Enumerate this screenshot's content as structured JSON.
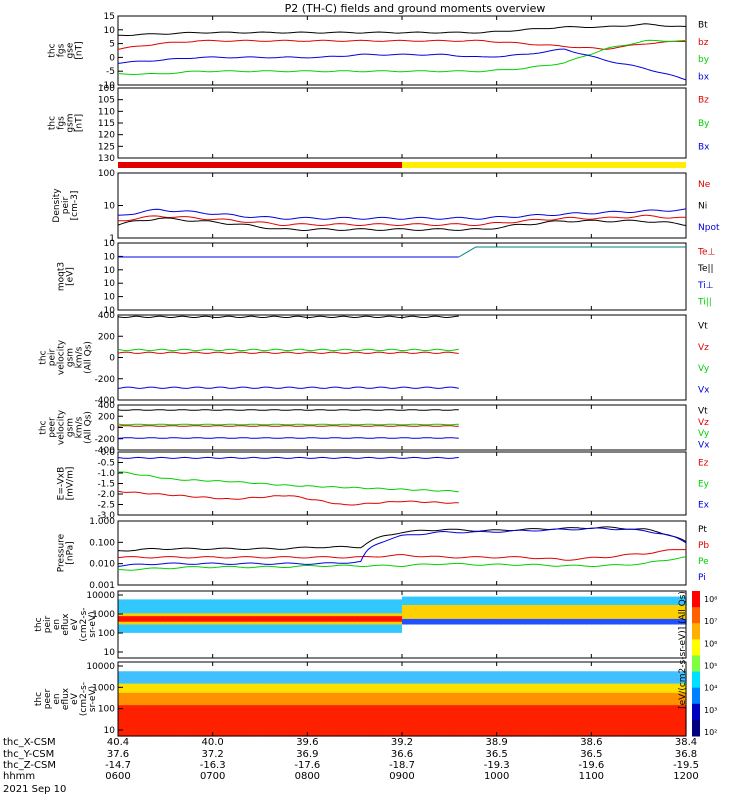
{
  "title": "P2 (TH-C) fields and ground moments overview",
  "footer": {
    "row_labels": [
      "thc_X-CSM",
      "thc_Y-CSM",
      "thc_Z-CSM",
      "hhmm",
      "2021 Sep 10"
    ],
    "columns": [
      {
        "x": "40.4",
        "y": "37.6",
        "z": "-14.7",
        "t": "0600"
      },
      {
        "x": "40.0",
        "y": "37.2",
        "z": "-16.3",
        "t": "0700"
      },
      {
        "x": "39.6",
        "y": "36.9",
        "z": "-17.6",
        "t": "0800"
      },
      {
        "x": "39.2",
        "y": "36.6",
        "z": "-18.7",
        "t": "0900"
      },
      {
        "x": "38.9",
        "y": "36.5",
        "z": "-19.3",
        "t": "1000"
      },
      {
        "x": "38.6",
        "y": "36.5",
        "z": "-19.6",
        "t": "1100"
      },
      {
        "x": "38.4",
        "y": "36.8",
        "z": "-19.5",
        "t": "1200"
      }
    ]
  },
  "colorbar_label": "[eV/(cm2-s-sr-eV)] (All Qs)",
  "colors": {
    "black": "#000000",
    "red": "#e00000",
    "green": "#00d000",
    "blue": "#0000e0",
    "yellow": "#ffee00",
    "teal": "#008080"
  },
  "chart_data": [
    {
      "type": "line",
      "id": "fgs_gse",
      "ylabel": [
        "thc",
        "fgs",
        "gse",
        "[nT]"
      ],
      "ylim": [
        -10,
        15
      ],
      "yticks": [
        "15",
        "10",
        "5",
        "0",
        "-5",
        "-10"
      ],
      "series": [
        {
          "name": "Bt",
          "color": "black",
          "values": [
            8,
            8.5,
            9,
            9,
            9,
            9,
            9,
            9,
            9,
            9,
            10,
            11,
            11,
            12,
            11
          ]
        },
        {
          "name": "bz",
          "color": "red",
          "values": [
            3,
            5,
            6,
            6,
            6,
            6,
            6,
            6,
            6,
            6,
            5,
            4,
            3,
            5,
            6
          ]
        },
        {
          "name": "by",
          "color": "green",
          "values": [
            -6,
            -6,
            -5,
            -5,
            -5,
            -5,
            -5,
            -5,
            -5,
            -5,
            -4,
            -2,
            3,
            6,
            6
          ]
        },
        {
          "name": "bx",
          "color": "blue",
          "values": [
            -2,
            -1,
            0,
            0,
            0,
            0,
            1,
            1,
            1,
            0,
            1,
            3,
            -1,
            -4,
            -8
          ]
        }
      ]
    },
    {
      "type": "line",
      "id": "fgs_gsm",
      "ylabel": [
        "thc",
        "fgs",
        "gsm",
        "[nT]"
      ],
      "ylim": [
        130,
        100
      ],
      "yticks": [
        "100",
        "105",
        "110",
        "115",
        "120",
        "125",
        "130"
      ],
      "series": [
        {
          "name": "Bz",
          "color": "red"
        },
        {
          "name": "By",
          "color": "green"
        },
        {
          "name": "Bx",
          "color": "blue"
        }
      ]
    },
    {
      "type": "bar",
      "id": "mode_bar",
      "segments": [
        {
          "from": 0,
          "to": 0.5,
          "color": "red"
        },
        {
          "from": 0.5,
          "to": 1,
          "color": "yellow"
        }
      ]
    },
    {
      "type": "line",
      "id": "density",
      "ylabel": [
        "Density",
        "peir",
        "[cm-3]"
      ],
      "scale": "log",
      "ylim": [
        1,
        200
      ],
      "yticks": [
        "100",
        "10",
        "1"
      ],
      "series": [
        {
          "name": "Ne",
          "color": "red",
          "values": [
            4,
            6,
            5,
            4,
            3,
            3,
            3,
            3,
            3,
            3,
            4,
            5,
            5,
            6,
            5
          ]
        },
        {
          "name": "Ni",
          "color": "black",
          "values": [
            3,
            5,
            4,
            3,
            2,
            2,
            2,
            2,
            2,
            2,
            3,
            4,
            4,
            4,
            3
          ]
        },
        {
          "name": "Npot",
          "color": "blue",
          "values": [
            6,
            10,
            8,
            6,
            5,
            5,
            5,
            5,
            5,
            5,
            6,
            7,
            8,
            9,
            10
          ]
        }
      ]
    },
    {
      "type": "line",
      "id": "moqt3",
      "ylabel": [
        "moqt3",
        "[eV]"
      ],
      "scale": "log",
      "yticks": [
        "10",
        "10",
        "10",
        "10",
        "10",
        "10"
      ],
      "series": [
        {
          "name": "Te⊥",
          "color": "red"
        },
        {
          "name": "Te||",
          "color": "black"
        },
        {
          "name": "Ti⊥",
          "color": "blue"
        },
        {
          "name": "Ti||",
          "color": "green"
        }
      ]
    },
    {
      "type": "line",
      "id": "velocity_gsm",
      "ylabel": [
        "thc",
        "peir",
        "velocity",
        "gsm",
        "km/s",
        "(All Qs)"
      ],
      "ylim": [
        -500,
        400
      ],
      "yticks": [
        "400",
        "200",
        "0",
        "-200",
        "-400"
      ],
      "series": [
        {
          "name": "Vt",
          "color": "black",
          "values": [
            380,
            380,
            380,
            380,
            380,
            380,
            380
          ]
        },
        {
          "name": "Vz",
          "color": "red",
          "values": [
            0,
            0,
            0,
            0,
            0,
            0,
            0
          ]
        },
        {
          "name": "Vy",
          "color": "green",
          "values": [
            30,
            30,
            30,
            30,
            30,
            30,
            30
          ]
        },
        {
          "name": "Vx",
          "color": "blue",
          "values": [
            -370,
            -370,
            -370,
            -370,
            -370,
            -370,
            -370
          ]
        }
      ]
    },
    {
      "type": "line",
      "id": "velocity_gse",
      "ylabel": [
        "thc",
        "peer",
        "velocity",
        "gsm",
        "km/s",
        "(All Qs)"
      ],
      "ylim": [
        -500,
        400
      ],
      "yticks": [
        "400",
        "200",
        "0",
        "-200",
        "-400"
      ],
      "series": [
        {
          "name": "Vt",
          "color": "black",
          "values": [
            300,
            300,
            300,
            300,
            300,
            300,
            300
          ]
        },
        {
          "name": "Vz",
          "color": "red",
          "values": [
            -20,
            -20,
            -20,
            -20,
            -20,
            -20,
            -20
          ]
        },
        {
          "name": "Vy",
          "color": "green",
          "values": [
            10,
            10,
            10,
            10,
            10,
            10,
            10
          ]
        },
        {
          "name": "Vx",
          "color": "blue",
          "values": [
            -260,
            -260,
            -260,
            -260,
            -260,
            -260,
            -260
          ]
        }
      ]
    },
    {
      "type": "line",
      "id": "efield",
      "ylabel": [
        "E=-VxB",
        "[mV/m]"
      ],
      "ylim": [
        -3,
        0.2
      ],
      "yticks": [
        "0.0",
        "-0.5",
        "-1.0",
        "-1.5",
        "-2.0",
        "-2.5",
        "-3.0"
      ],
      "series": [
        {
          "name": "Ez",
          "color": "red",
          "values": [
            -1.8,
            -2.0,
            -2.2,
            -2.0,
            -2.5,
            -2.3,
            -2.4
          ]
        },
        {
          "name": "Ey",
          "color": "green",
          "values": [
            -0.8,
            -1.2,
            -1.3,
            -1.5,
            -1.6,
            -1.7,
            -1.8
          ]
        },
        {
          "name": "Ex",
          "color": "blue",
          "values": [
            -0.1,
            -0.1,
            -0.1,
            -0.1,
            -0.1,
            -0.1,
            -0.1
          ]
        }
      ]
    },
    {
      "type": "line",
      "id": "pressure",
      "ylabel": [
        "Pressure",
        "[nPa]"
      ],
      "scale": "log",
      "ylim": [
        0.001,
        1
      ],
      "yticks": [
        "1.000",
        "0.100",
        "0.010",
        "0.001"
      ],
      "series": [
        {
          "name": "Pt",
          "color": "black",
          "values": [
            0.04,
            0.05,
            0.05,
            0.05,
            0.05,
            0.06,
            0.06,
            0.3,
            0.4,
            0.35,
            0.4,
            0.45,
            0.5,
            0.4,
            0.1
          ]
        },
        {
          "name": "Pb",
          "color": "red",
          "values": [
            0.02,
            0.02,
            0.02,
            0.02,
            0.02,
            0.02,
            0.02,
            0.025,
            0.02,
            0.02,
            0.02,
            0.015,
            0.02,
            0.03,
            0.05
          ]
        },
        {
          "name": "Pe",
          "color": "green",
          "values": [
            0.005,
            0.006,
            0.007,
            0.007,
            0.007,
            0.008,
            0.008,
            0.008,
            0.01,
            0.009,
            0.009,
            0.008,
            0.008,
            0.01,
            0.02
          ]
        },
        {
          "name": "Pi",
          "color": "blue",
          "values": [
            0.008,
            0.01,
            0.01,
            0.01,
            0.01,
            0.01,
            0.012,
            0.2,
            0.3,
            0.3,
            0.35,
            0.4,
            0.45,
            0.35,
            0.1
          ]
        }
      ]
    },
    {
      "type": "heatmap",
      "id": "peir_spec",
      "ylabel": [
        "thc",
        "peir",
        "en",
        "eflux",
        "eV",
        "(cm2-s-",
        "sr-eV)"
      ],
      "scale": "log",
      "yticks": [
        "10000",
        "1000",
        "100",
        "10"
      ]
    },
    {
      "type": "heatmap",
      "id": "peer_spec",
      "ylabel": [
        "thc",
        "peer",
        "en",
        "eflux",
        "eV",
        "(cm2-s-",
        "sr-eV)"
      ],
      "scale": "log",
      "yticks": [
        "10000",
        "1000",
        "100",
        "10"
      ],
      "colorbar_ticks": [
        "10⁸",
        "10⁷",
        "10⁶",
        "10⁵",
        "10⁴",
        "10³",
        "10²"
      ]
    }
  ],
  "legends": {
    "fgs_gse": [
      "Bt",
      "bz",
      "by",
      "bx"
    ],
    "fgs_gsm": [
      "Bz",
      "By",
      "Bx"
    ],
    "density": [
      "Ne",
      "Ni",
      "Npot"
    ],
    "moqt3": [
      "Te⊥",
      "Te||",
      "Ti⊥",
      "Ti||"
    ],
    "velocity_gsm": [
      "Vt",
      "Vz",
      "Vy",
      "Vx"
    ],
    "velocity_gse": [
      "Vt",
      "Vz",
      "Vy",
      "Vx"
    ],
    "efield": [
      "Ez",
      "Ey",
      "Ex"
    ],
    "pressure": [
      "Pt",
      "Pb",
      "Pe",
      "Pi"
    ]
  }
}
